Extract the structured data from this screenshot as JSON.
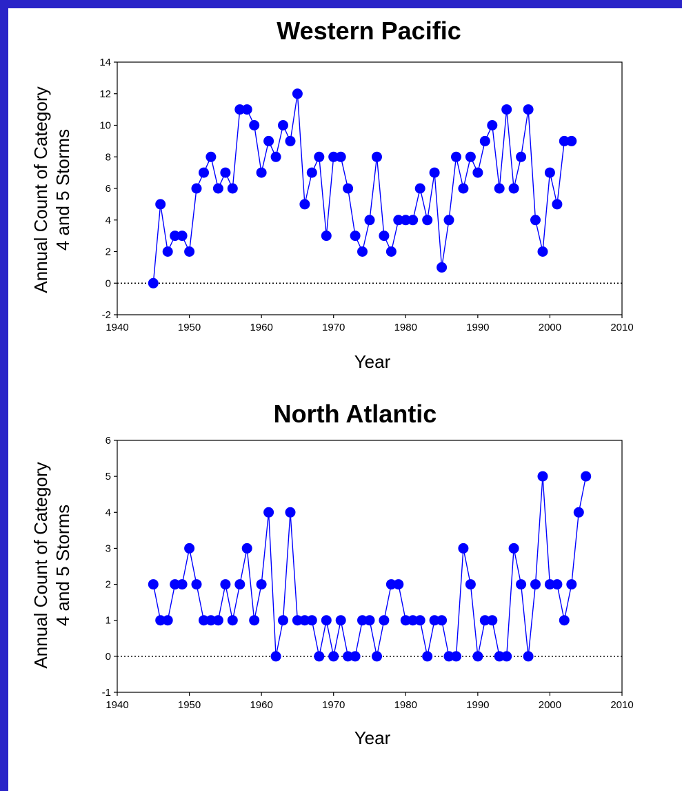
{
  "colors": {
    "background_frame": "#1f1bb8",
    "panel": "#ffffff",
    "series": "#0000ff",
    "axis": "#000000"
  },
  "chart_data": [
    {
      "type": "line",
      "title": "Western Pacific",
      "xlabel": "Year",
      "ylabel": "Annual Count of Category 4 and 5 Storms",
      "ylabel_lines": [
        "Annual Count of Category",
        "4 and 5 Storms"
      ],
      "xlim": [
        1940,
        2010
      ],
      "ylim": [
        -2,
        14
      ],
      "xticks": [
        1940,
        1950,
        1960,
        1970,
        1980,
        1990,
        2000,
        2010
      ],
      "yticks": [
        -2,
        0,
        2,
        4,
        6,
        8,
        10,
        12,
        14
      ],
      "zero_line": "dotted",
      "marker": "filled-circle",
      "x": [
        1945,
        1946,
        1947,
        1948,
        1949,
        1950,
        1951,
        1952,
        1953,
        1954,
        1955,
        1956,
        1957,
        1958,
        1959,
        1960,
        1961,
        1962,
        1963,
        1964,
        1965,
        1966,
        1967,
        1968,
        1969,
        1970,
        1971,
        1972,
        1973,
        1974,
        1975,
        1976,
        1977,
        1978,
        1979,
        1980,
        1981,
        1982,
        1983,
        1984,
        1985,
        1986,
        1987,
        1988,
        1989,
        1990,
        1991,
        1992,
        1993,
        1994,
        1995,
        1996,
        1997,
        1998,
        1999,
        2000,
        2001,
        2002,
        2003
      ],
      "values": [
        0,
        5,
        2,
        3,
        3,
        2,
        6,
        7,
        8,
        6,
        7,
        6,
        11,
        11,
        10,
        7,
        9,
        8,
        10,
        9,
        12,
        5,
        7,
        8,
        3,
        8,
        8,
        6,
        3,
        2,
        4,
        8,
        3,
        2,
        4,
        4,
        4,
        6,
        4,
        7,
        1,
        4,
        8,
        6,
        8,
        7,
        9,
        10,
        6,
        11,
        6,
        8,
        11,
        4,
        2,
        7,
        5,
        9,
        9
      ]
    },
    {
      "type": "line",
      "title": "North Atlantic",
      "xlabel": "Year",
      "ylabel": "Annual Count of Category 4 and 5 Storms",
      "ylabel_lines": [
        "Annual Count of Category",
        "4 and 5 Storms"
      ],
      "xlim": [
        1940,
        2010
      ],
      "ylim": [
        -1,
        6
      ],
      "xticks": [
        1940,
        1950,
        1960,
        1970,
        1980,
        1990,
        2000,
        2010
      ],
      "yticks": [
        -1,
        0,
        1,
        2,
        3,
        4,
        5,
        6
      ],
      "zero_line": "dotted",
      "marker": "filled-circle",
      "x": [
        1945,
        1946,
        1947,
        1948,
        1949,
        1950,
        1951,
        1952,
        1953,
        1954,
        1955,
        1956,
        1957,
        1958,
        1959,
        1960,
        1961,
        1962,
        1963,
        1964,
        1965,
        1966,
        1967,
        1968,
        1969,
        1970,
        1971,
        1972,
        1973,
        1974,
        1975,
        1976,
        1977,
        1978,
        1979,
        1980,
        1981,
        1982,
        1983,
        1984,
        1985,
        1986,
        1987,
        1988,
        1989,
        1990,
        1991,
        1992,
        1993,
        1994,
        1995,
        1996,
        1997,
        1998,
        1999,
        2000,
        2001,
        2002,
        2003,
        2004,
        2005
      ],
      "values": [
        2,
        1,
        1,
        2,
        2,
        3,
        2,
        1,
        1,
        1,
        2,
        1,
        2,
        3,
        1,
        2,
        4,
        0,
        1,
        4,
        1,
        1,
        1,
        0,
        1,
        0,
        1,
        0,
        0,
        1,
        1,
        0,
        1,
        2,
        2,
        1,
        1,
        1,
        0,
        1,
        1,
        0,
        0,
        3,
        2,
        0,
        1,
        1,
        0,
        0,
        3,
        2,
        0,
        2,
        5,
        2,
        2,
        1,
        2,
        4,
        5
      ]
    }
  ]
}
